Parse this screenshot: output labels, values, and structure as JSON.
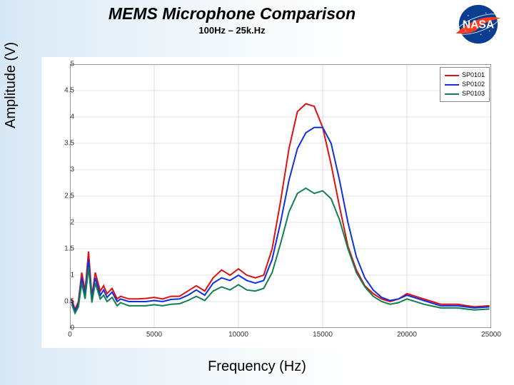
{
  "title": "MEMS Microphone Comparison",
  "subtitle": "100Hz – 25k.Hz",
  "yaxis_label": "Amplitude (V)",
  "xaxis_label": "Frequency (Hz)",
  "logo": {
    "text": "NASA",
    "bg": "#0b3d91",
    "swoosh": "#fc3d21"
  },
  "chart": {
    "type": "line",
    "background_color": "#ffffff",
    "grid_color": "#c8c8c8",
    "axis_color": "#333333",
    "xlim": [
      0,
      25000
    ],
    "ylim": [
      0,
      5
    ],
    "xticks": [
      0,
      5000,
      10000,
      15000,
      20000,
      25000
    ],
    "yticks": [
      0,
      0.5,
      1,
      1.5,
      2,
      2.5,
      3,
      3.5,
      4,
      4.5,
      5
    ],
    "ytick_labels": [
      "0",
      "0.5",
      "1",
      "1.5",
      "2",
      "2.5",
      "3",
      "3.5",
      "4",
      "4.5",
      "5"
    ],
    "xtick_labels": [
      "0",
      "5000",
      "10000",
      "15000",
      "20000",
      "25000"
    ],
    "line_width": 2,
    "legend": {
      "position": "top-right",
      "items": [
        {
          "label": "SP0101",
          "color": "#e01010"
        },
        {
          "label": "SP0102",
          "color": "#1030e0"
        },
        {
          "label": "SP0103",
          "color": "#108050"
        }
      ]
    },
    "series": [
      {
        "name": "SP0101",
        "color": "#e01010",
        "x": [
          100,
          300,
          500,
          700,
          900,
          1100,
          1300,
          1500,
          1800,
          2000,
          2200,
          2500,
          2800,
          3000,
          3500,
          4000,
          4500,
          5000,
          5500,
          6000,
          6500,
          7000,
          7500,
          8000,
          8500,
          9000,
          9500,
          10000,
          10500,
          11000,
          11500,
          12000,
          12500,
          13000,
          13500,
          14000,
          14500,
          15000,
          15500,
          16000,
          16500,
          17000,
          17500,
          18000,
          18500,
          19000,
          19500,
          20000,
          21000,
          22000,
          23000,
          24000,
          24900
        ],
        "y": [
          0.55,
          0.35,
          0.5,
          1.05,
          0.7,
          1.45,
          0.6,
          1.05,
          0.7,
          0.8,
          0.65,
          0.75,
          0.55,
          0.6,
          0.55,
          0.55,
          0.56,
          0.58,
          0.55,
          0.6,
          0.6,
          0.7,
          0.8,
          0.7,
          0.95,
          1.1,
          1.0,
          1.12,
          1.0,
          0.95,
          1.0,
          1.5,
          2.4,
          3.4,
          4.1,
          4.25,
          4.2,
          3.8,
          3.1,
          2.3,
          1.55,
          1.1,
          0.8,
          0.65,
          0.55,
          0.5,
          0.55,
          0.65,
          0.55,
          0.45,
          0.45,
          0.4,
          0.42
        ]
      },
      {
        "name": "SP0102",
        "color": "#1030e0",
        "x": [
          100,
          300,
          500,
          700,
          900,
          1100,
          1300,
          1500,
          1800,
          2000,
          2200,
          2500,
          2800,
          3000,
          3500,
          4000,
          4500,
          5000,
          5500,
          6000,
          6500,
          7000,
          7500,
          8000,
          8500,
          9000,
          9500,
          10000,
          10500,
          11000,
          11500,
          12000,
          12500,
          13000,
          13500,
          14000,
          14500,
          15000,
          15500,
          16000,
          16500,
          17000,
          17500,
          18000,
          18500,
          19000,
          19500,
          20000,
          21000,
          22000,
          23000,
          24000,
          24900
        ],
        "y": [
          0.5,
          0.32,
          0.45,
          0.95,
          0.62,
          1.3,
          0.55,
          0.95,
          0.62,
          0.72,
          0.58,
          0.68,
          0.5,
          0.55,
          0.5,
          0.5,
          0.5,
          0.52,
          0.5,
          0.54,
          0.55,
          0.62,
          0.72,
          0.62,
          0.85,
          0.95,
          0.9,
          1.0,
          0.9,
          0.85,
          0.9,
          1.3,
          2.0,
          2.8,
          3.4,
          3.7,
          3.8,
          3.8,
          3.5,
          2.8,
          2.0,
          1.35,
          0.95,
          0.72,
          0.58,
          0.52,
          0.55,
          0.62,
          0.52,
          0.42,
          0.42,
          0.38,
          0.4
        ]
      },
      {
        "name": "SP0103",
        "color": "#108050",
        "x": [
          100,
          300,
          500,
          700,
          900,
          1100,
          1300,
          1500,
          1800,
          2000,
          2200,
          2500,
          2800,
          3000,
          3500,
          4000,
          4500,
          5000,
          5500,
          6000,
          6500,
          7000,
          7500,
          8000,
          8500,
          9000,
          9500,
          10000,
          10500,
          11000,
          11500,
          12000,
          12500,
          13000,
          13500,
          14000,
          14500,
          15000,
          15500,
          16000,
          16500,
          17000,
          17500,
          18000,
          18500,
          19000,
          19500,
          20000,
          21000,
          22000,
          23000,
          24000,
          24900
        ],
        "y": [
          0.45,
          0.28,
          0.4,
          0.85,
          0.55,
          1.15,
          0.48,
          0.85,
          0.55,
          0.62,
          0.5,
          0.58,
          0.42,
          0.48,
          0.42,
          0.42,
          0.42,
          0.44,
          0.42,
          0.45,
          0.46,
          0.52,
          0.6,
          0.52,
          0.7,
          0.78,
          0.72,
          0.82,
          0.72,
          0.7,
          0.75,
          1.05,
          1.6,
          2.2,
          2.55,
          2.65,
          2.55,
          2.6,
          2.45,
          2.05,
          1.5,
          1.05,
          0.78,
          0.6,
          0.5,
          0.45,
          0.48,
          0.55,
          0.45,
          0.38,
          0.38,
          0.34,
          0.36
        ]
      }
    ]
  }
}
